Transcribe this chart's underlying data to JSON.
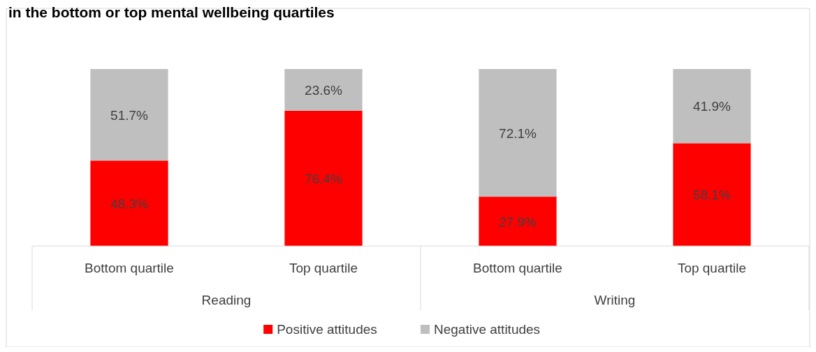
{
  "chart_data": {
    "type": "bar",
    "title": "in the bottom or top mental wellbeing quartiles",
    "categories": [
      "Bottom quartile",
      "Top quartile",
      "Bottom quartile",
      "Top quartile"
    ],
    "stacked": true,
    "legend": "bottom",
    "annotations": [
      "Reading",
      "Writing"
    ],
    "series": [
      {
        "name": "Positive attitudes",
        "color": "#ff0000",
        "values": [
          48.3,
          76.4,
          27.9,
          58.1
        ],
        "value_labels": [
          "48.3%",
          "76.4%",
          "27.9%",
          "58.1%"
        ]
      },
      {
        "name": "Negative attitudes",
        "color": "#bfbfbf",
        "values": [
          51.7,
          23.6,
          72.1,
          41.9
        ],
        "value_labels": [
          "51.7%",
          "23.6%",
          "72.1%",
          "41.9%"
        ]
      }
    ]
  }
}
